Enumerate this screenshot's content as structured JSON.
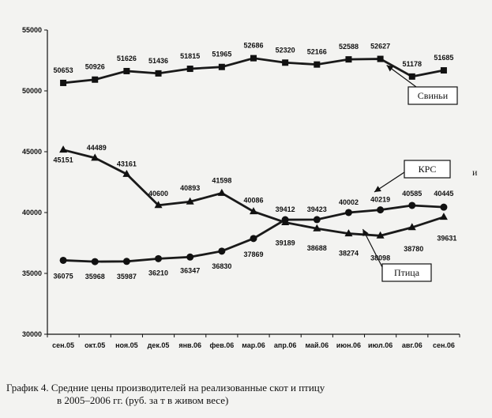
{
  "chart_data": {
    "type": "line",
    "categories": [
      "сен.05",
      "окт.05",
      "ноя.05",
      "дек.05",
      "янв.06",
      "фев.06",
      "мар.06",
      "апр.06",
      "май.06",
      "июн.06",
      "июл.06",
      "авг.06",
      "сен.06"
    ],
    "ylim": [
      30000,
      55000
    ],
    "yticks": [
      30000,
      35000,
      40000,
      45000,
      50000,
      55000
    ],
    "series": [
      {
        "name": "Свиньи",
        "marker": "diamond",
        "values": [
          50653,
          50926,
          51626,
          51436,
          51815,
          51965,
          52686,
          52320,
          52166,
          52588,
          52627,
          51178,
          51685
        ]
      },
      {
        "name": "КРС",
        "marker": "triangle",
        "values": [
          45151,
          44489,
          43161,
          40600,
          40893,
          41598,
          40086,
          39189,
          38688,
          38274,
          38098,
          38780,
          39631
        ]
      },
      {
        "name": "Птица",
        "marker": "circle",
        "values": [
          36075,
          35968,
          35987,
          36210,
          36347,
          36830,
          37869,
          39412,
          39423,
          40002,
          40219,
          40585,
          40445
        ]
      }
    ],
    "grid": false,
    "legend": "callout boxes",
    "annotations": [
      "и"
    ]
  },
  "caption": {
    "line1": "График 4. Средние цены производителей на реализованные скот и птицу",
    "line2": "в 2005–2006 гг.  (руб. за т в живом весе)"
  }
}
